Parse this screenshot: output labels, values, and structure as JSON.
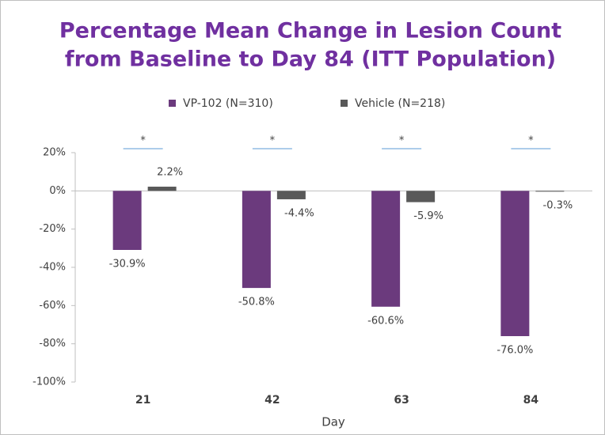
{
  "chart_data": {
    "type": "bar",
    "title": [
      "Percentage Mean Change in Lesion Count",
      "from Baseline to Day 84 (ITT Population)"
    ],
    "x_label": "Day",
    "categories": [
      "21",
      "42",
      "63",
      "84"
    ],
    "series": [
      {
        "name": "VP-102 (N=310)",
        "color": "#6b3a7d",
        "values": [
          -30.9,
          -50.8,
          -60.6,
          -76.0
        ],
        "value_labels": [
          "-30.9%",
          "-50.8%",
          "-60.6%",
          "-76.0%"
        ]
      },
      {
        "name": "Vehicle (N=218)",
        "color": "#595959",
        "values": [
          2.2,
          -4.4,
          -5.9,
          -0.3
        ],
        "value_labels": [
          "2.2%",
          "-4.4%",
          "-5.9%",
          "-0.3%"
        ]
      }
    ],
    "significance": [
      "*",
      "*",
      "*",
      "*"
    ],
    "significance_color": "#5b9bd5",
    "ylim": [
      -100,
      20
    ],
    "yticks": [
      {
        "value": 20,
        "label": "20%"
      },
      {
        "value": 0,
        "label": "0%"
      },
      {
        "value": -20,
        "label": "-20%"
      },
      {
        "value": -40,
        "label": "-40%"
      },
      {
        "value": -60,
        "label": "-60%"
      },
      {
        "value": -80,
        "label": "-80%"
      },
      {
        "value": -100,
        "label": "-100%"
      }
    ],
    "title_color": "#7030a0",
    "legend": "top"
  }
}
